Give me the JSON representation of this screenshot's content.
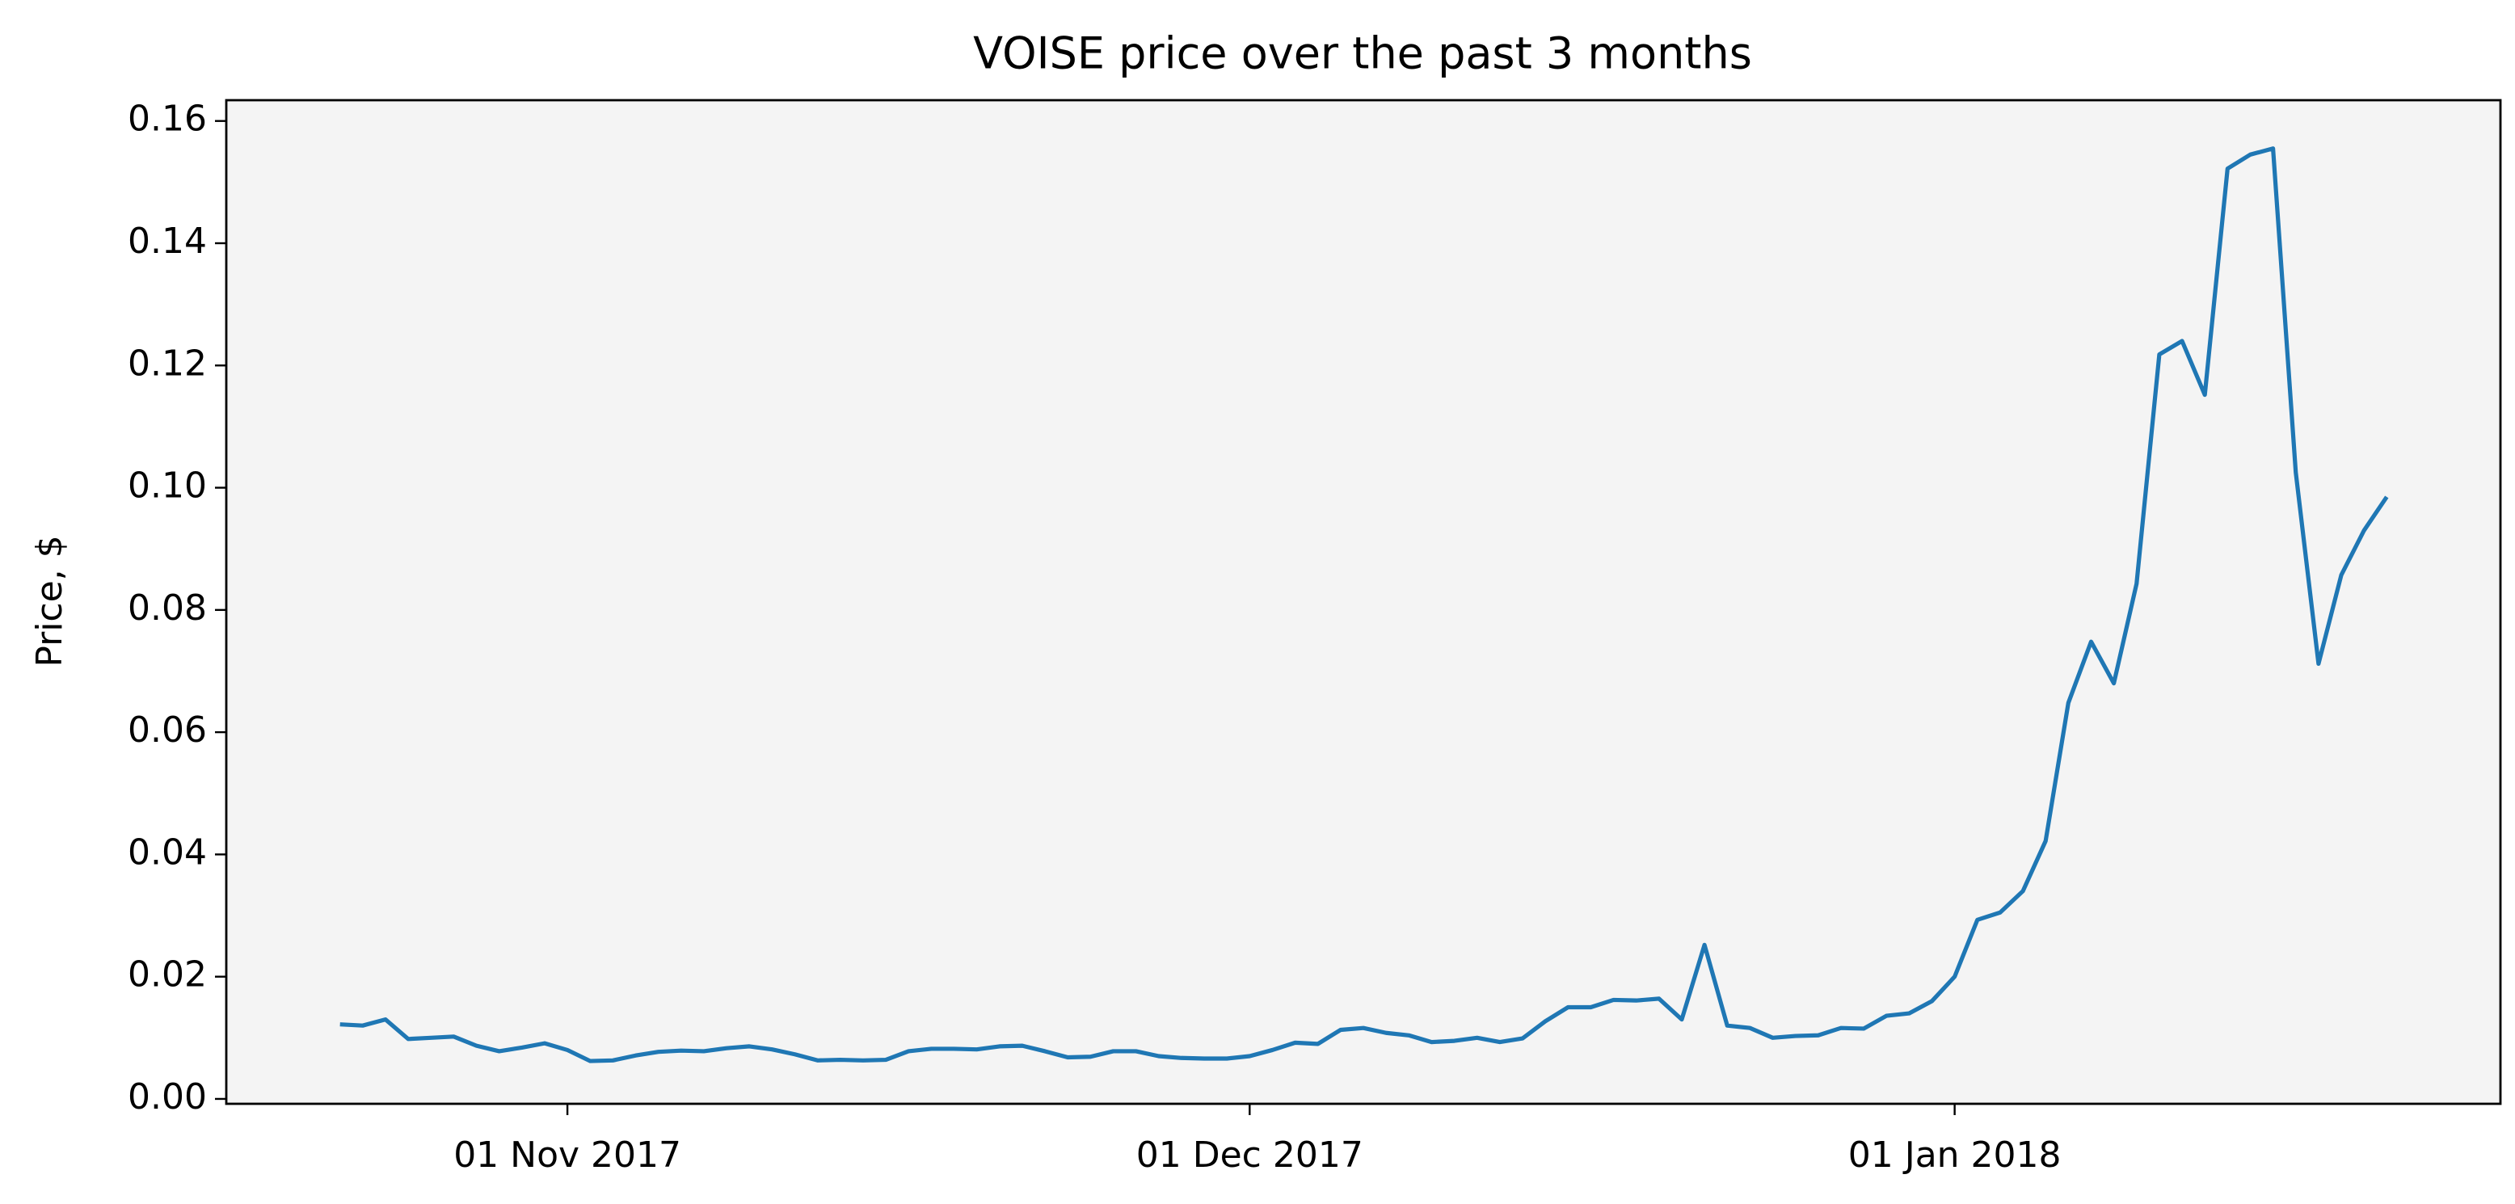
{
  "chart_data": {
    "type": "line",
    "title": "VOISE price over the past 3 months",
    "y_label": "Price, $",
    "x": [
      "2017-10-22",
      "2017-10-23",
      "2017-10-24",
      "2017-10-25",
      "2017-10-26",
      "2017-10-27",
      "2017-10-28",
      "2017-10-29",
      "2017-10-30",
      "2017-10-31",
      "2017-11-01",
      "2017-11-02",
      "2017-11-03",
      "2017-11-04",
      "2017-11-05",
      "2017-11-06",
      "2017-11-07",
      "2017-11-08",
      "2017-11-09",
      "2017-11-10",
      "2017-11-11",
      "2017-11-12",
      "2017-11-13",
      "2017-11-14",
      "2017-11-15",
      "2017-11-16",
      "2017-11-17",
      "2017-11-18",
      "2017-11-19",
      "2017-11-20",
      "2017-11-21",
      "2017-11-22",
      "2017-11-23",
      "2017-11-24",
      "2017-11-25",
      "2017-11-26",
      "2017-11-27",
      "2017-11-28",
      "2017-11-29",
      "2017-11-30",
      "2017-12-01",
      "2017-12-02",
      "2017-12-03",
      "2017-12-04",
      "2017-12-05",
      "2017-12-06",
      "2017-12-07",
      "2017-12-08",
      "2017-12-09",
      "2017-12-10",
      "2017-12-11",
      "2017-12-12",
      "2017-12-13",
      "2017-12-14",
      "2017-12-15",
      "2017-12-16",
      "2017-12-17",
      "2017-12-18",
      "2017-12-19",
      "2017-12-20",
      "2017-12-21",
      "2017-12-22",
      "2017-12-23",
      "2017-12-24",
      "2017-12-25",
      "2017-12-26",
      "2017-12-27",
      "2017-12-28",
      "2017-12-29",
      "2017-12-30",
      "2017-12-31",
      "2018-01-01",
      "2018-01-02",
      "2018-01-03",
      "2018-01-04",
      "2018-01-05",
      "2018-01-06",
      "2018-01-07",
      "2018-01-08",
      "2018-01-09",
      "2018-01-10",
      "2018-01-11",
      "2018-01-12",
      "2018-01-13",
      "2018-01-14",
      "2018-01-15",
      "2018-01-16",
      "2018-01-17",
      "2018-01-18",
      "2018-01-19",
      "2018-01-20"
    ],
    "series": [
      {
        "name": "VOISE",
        "color": "#1f77b4",
        "values": [
          0.0122,
          0.012,
          0.013,
          0.0098,
          0.01,
          0.0102,
          0.0087,
          0.0078,
          0.0084,
          0.0091,
          0.008,
          0.0062,
          0.0063,
          0.0071,
          0.0077,
          0.0079,
          0.0078,
          0.0083,
          0.0086,
          0.0081,
          0.0073,
          0.0063,
          0.0064,
          0.0063,
          0.0064,
          0.0078,
          0.0082,
          0.0082,
          0.0081,
          0.0086,
          0.0087,
          0.0078,
          0.0068,
          0.0069,
          0.0078,
          0.0078,
          0.007,
          0.0067,
          0.0066,
          0.0066,
          0.007,
          0.008,
          0.0092,
          0.009,
          0.0113,
          0.0116,
          0.0108,
          0.0104,
          0.0093,
          0.0095,
          0.01,
          0.0093,
          0.0099,
          0.0127,
          0.015,
          0.015,
          0.0162,
          0.0161,
          0.0164,
          0.013,
          0.0252,
          0.012,
          0.0116,
          0.01,
          0.0103,
          0.0104,
          0.0116,
          0.0115,
          0.0136,
          0.014,
          0.016,
          0.02,
          0.0293,
          0.0305,
          0.034,
          0.0422,
          0.0648,
          0.0748,
          0.068,
          0.0843,
          0.1218,
          0.124,
          0.1152,
          0.1522,
          0.1545,
          0.1555,
          0.1025,
          0.0712,
          0.0857,
          0.093,
          0.0985
        ]
      }
    ],
    "xlim": [
      "2017-10-17",
      "2018-01-25"
    ],
    "xticks": [
      {
        "value": "2017-11-01",
        "label": "01 Nov 2017"
      },
      {
        "value": "2017-12-01",
        "label": "01 Dec 2017"
      },
      {
        "value": "2018-01-01",
        "label": "01 Jan 2018"
      }
    ],
    "ylim": [
      -0.0008,
      0.1634
    ],
    "yticks": [
      {
        "value": 0,
        "label": "0.00"
      },
      {
        "value": 0.02,
        "label": "0.02"
      },
      {
        "value": 0.04,
        "label": "0.04"
      },
      {
        "value": 0.06,
        "label": "0.06"
      },
      {
        "value": 0.08,
        "label": "0.08"
      },
      {
        "value": 0.1,
        "label": "0.10"
      },
      {
        "value": 0.12,
        "label": "0.12"
      },
      {
        "value": 0.14,
        "label": "0.14"
      },
      {
        "value": 0.16,
        "label": "0.16"
      }
    ],
    "background": "#f4f4f4"
  }
}
